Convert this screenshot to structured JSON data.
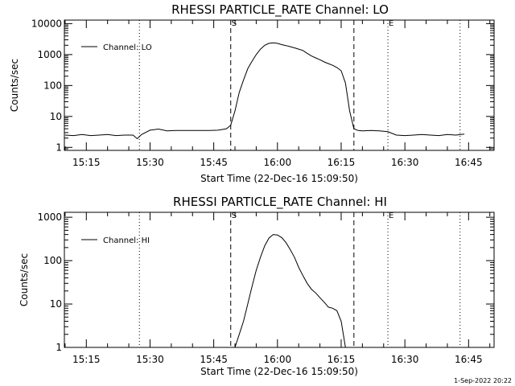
{
  "footer": {
    "date_stamp": "1-Sep-2022 20:22"
  },
  "chart_data": [
    {
      "type": "line",
      "title": "RHESSI PARTICLE_RATE Channel: LO",
      "xlabel": "Start Time (22-Dec-16 15:09:50)",
      "ylabel": "Counts/sec",
      "yscale": "log",
      "xlim": [
        "15:09:50",
        "16:51:00"
      ],
      "ylim": [
        0.8,
        13000
      ],
      "x_ticks": [
        "15:15",
        "15:30",
        "15:45",
        "16:00",
        "16:15",
        "16:30",
        "16:45"
      ],
      "y_ticks": [
        1,
        10,
        100,
        1000,
        10000
      ],
      "y_tick_labels": [
        "1",
        "10",
        "100",
        "1000",
        "10000"
      ],
      "legend": {
        "label": "Channel: LO",
        "position": "top-left"
      },
      "markers": [
        {
          "time": "15:27:30",
          "label": "",
          "style": "dotted"
        },
        {
          "time": "15:49:00",
          "label": "S",
          "style": "dashed"
        },
        {
          "time": "16:18:00",
          "label": "",
          "style": "dashed"
        },
        {
          "time": "16:26:00",
          "label": "E",
          "style": "dotted"
        },
        {
          "time": "16:43:00",
          "label": "",
          "style": "dotted"
        }
      ],
      "series": [
        {
          "name": "Channel: LO",
          "x": [
            "15:10",
            "15:12",
            "15:14",
            "15:16",
            "15:18",
            "15:20",
            "15:22",
            "15:24",
            "15:26",
            "15:27",
            "15:28",
            "15:30",
            "15:32",
            "15:34",
            "15:36",
            "15:38",
            "15:40",
            "15:42",
            "15:44",
            "15:46",
            "15:48",
            "15:49",
            "15:50",
            "15:51",
            "15:52",
            "15:53",
            "15:54",
            "15:55",
            "15:56",
            "15:57",
            "15:58",
            "15:59",
            "16:00",
            "16:01",
            "16:02",
            "16:03",
            "16:04",
            "16:05",
            "16:06",
            "16:07",
            "16:08",
            "16:09",
            "16:10",
            "16:11",
            "16:12",
            "16:13",
            "16:14",
            "16:15",
            "16:16",
            "16:17",
            "16:18",
            "16:19",
            "16:20",
            "16:22",
            "16:24",
            "16:26",
            "16:28",
            "16:30",
            "16:32",
            "16:34",
            "16:36",
            "16:38",
            "16:40",
            "16:42",
            "16:44"
          ],
          "values": [
            2.5,
            2.4,
            2.6,
            2.4,
            2.5,
            2.6,
            2.4,
            2.5,
            2.5,
            1.9,
            2.6,
            3.6,
            3.9,
            3.4,
            3.5,
            3.5,
            3.5,
            3.5,
            3.5,
            3.6,
            4.0,
            5.2,
            15,
            60,
            150,
            350,
            600,
            1000,
            1500,
            2000,
            2300,
            2400,
            2300,
            2100,
            1950,
            1800,
            1650,
            1500,
            1350,
            1100,
            900,
            780,
            680,
            580,
            510,
            450,
            380,
            300,
            120,
            15,
            4.0,
            3.5,
            3.4,
            3.5,
            3.4,
            3.2,
            2.5,
            2.4,
            2.5,
            2.6,
            2.5,
            2.4,
            2.6,
            2.5,
            2.7
          ]
        }
      ]
    },
    {
      "type": "line",
      "title": "RHESSI PARTICLE_RATE Channel: HI",
      "xlabel": "Start Time (22-Dec-16 15:09:50)",
      "ylabel": "Counts/sec",
      "yscale": "log",
      "xlim": [
        "15:09:50",
        "16:51:00"
      ],
      "ylim": [
        1,
        1300
      ],
      "x_ticks": [
        "15:15",
        "15:30",
        "15:45",
        "16:00",
        "16:15",
        "16:30",
        "16:45"
      ],
      "y_ticks": [
        1,
        10,
        100,
        1000
      ],
      "y_tick_labels": [
        "1",
        "10",
        "100",
        "1000"
      ],
      "legend": {
        "label": "Channel: HI",
        "position": "top-left"
      },
      "markers": [
        {
          "time": "15:27:30",
          "label": "",
          "style": "dotted"
        },
        {
          "time": "15:49:00",
          "label": "S",
          "style": "dashed"
        },
        {
          "time": "16:18:00",
          "label": "",
          "style": "dashed"
        },
        {
          "time": "16:26:00",
          "label": "E",
          "style": "dotted"
        },
        {
          "time": "16:43:00",
          "label": "",
          "style": "dotted"
        }
      ],
      "series": [
        {
          "name": "Channel: HI",
          "x": [
            "15:50",
            "15:51",
            "15:52",
            "15:53",
            "15:54",
            "15:55",
            "15:56",
            "15:57",
            "15:58",
            "15:59",
            "16:00",
            "16:01",
            "16:02",
            "16:03",
            "16:04",
            "16:05",
            "16:06",
            "16:07",
            "16:08",
            "16:09",
            "16:10",
            "16:11",
            "16:12",
            "16:13",
            "16:14",
            "16:15",
            "16:16"
          ],
          "values": [
            1,
            2,
            4,
            10,
            25,
            60,
            120,
            220,
            330,
            400,
            390,
            340,
            260,
            180,
            120,
            70,
            45,
            30,
            22,
            18,
            14,
            11,
            8.5,
            8,
            7,
            4,
            1
          ]
        }
      ]
    }
  ]
}
